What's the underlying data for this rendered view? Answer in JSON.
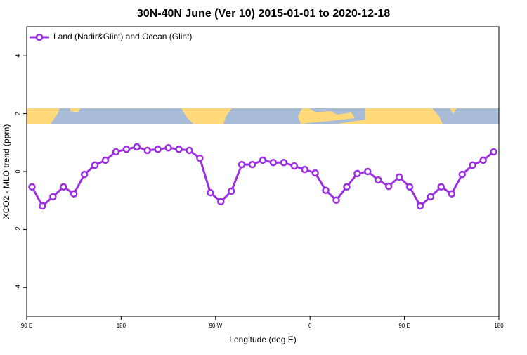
{
  "chart_data": {
    "type": "line",
    "title": "30N-40N June (Ver 10)   2015-01-01 to 2020-12-18",
    "xlabel": "Longitude (deg E)",
    "ylabel": "XCO2 - MLO trend (ppm)",
    "x": [
      95,
      105,
      115,
      125,
      135,
      145,
      155,
      165,
      175,
      185,
      195,
      205,
      215,
      225,
      235,
      245,
      255,
      265,
      275,
      285,
      295,
      305,
      315,
      325,
      335,
      345,
      355,
      365,
      375,
      385,
      395,
      405,
      415,
      425,
      435,
      445,
      455,
      465,
      475,
      485,
      495,
      505,
      515,
      525,
      535
    ],
    "series": [
      {
        "name": "Land (Nadir&Glint) and Ocean (Glint)",
        "color": "#9b30e0",
        "values": [
          -0.53,
          -1.19,
          -0.87,
          -0.53,
          -0.77,
          -0.1,
          0.22,
          0.39,
          0.68,
          0.77,
          0.85,
          0.73,
          0.77,
          0.82,
          0.77,
          0.73,
          0.46,
          -0.73,
          -1.04,
          -0.68,
          0.24,
          0.24,
          0.39,
          0.31,
          0.31,
          0.19,
          0.07,
          -0.05,
          -0.65,
          -0.99,
          -0.53,
          -0.07,
          0,
          -0.29,
          -0.51,
          -0.19,
          -0.53,
          -1.19,
          -0.87,
          -0.53,
          -0.77,
          -0.1,
          0.22,
          0.39,
          0.68
        ]
      }
    ],
    "xlim": [
      90,
      540
    ],
    "xticks": [
      {
        "value": 90,
        "label": "90 E"
      },
      180,
      {
        "value": 270,
        "label": "90 W"
      },
      {
        "value": 360,
        "label": "0"
      },
      {
        "value": 450,
        "label": "90 E"
      },
      {
        "value": 540,
        "label": "180"
      }
    ],
    "ylim": [
      -5,
      5
    ],
    "yticks": [
      -4,
      -2,
      0,
      2,
      4
    ],
    "legend": "top-left"
  }
}
